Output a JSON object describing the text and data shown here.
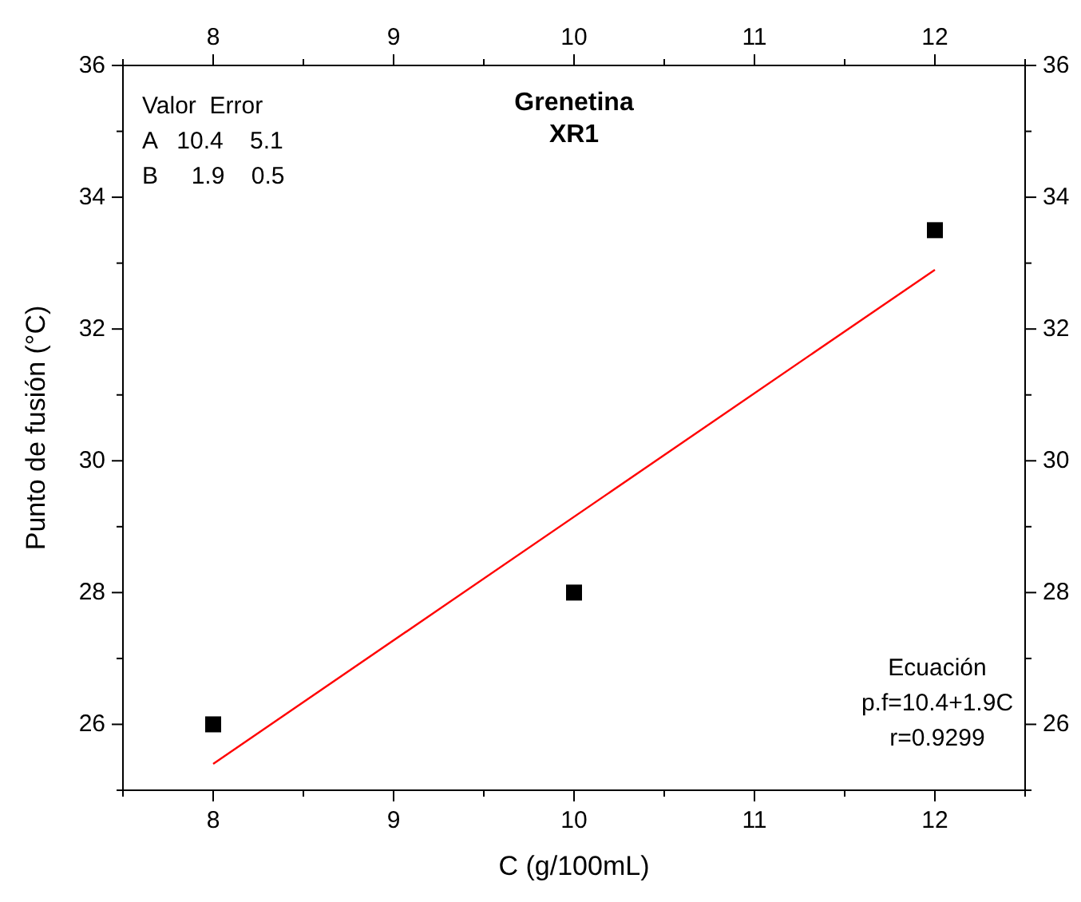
{
  "chart_data": {
    "type": "scatter",
    "title": "Grenetina",
    "subtitle": "XR1",
    "xlabel": "C (g/100mL)",
    "ylabel": "Punto de fusión (°C)",
    "xlim": [
      7.5,
      12.5
    ],
    "xticks": [
      {
        "value": 7.5,
        "label": null
      },
      8,
      {
        "value": 8.5,
        "label": null
      },
      9,
      {
        "value": 9.5,
        "label": null
      },
      10,
      {
        "value": 10.5,
        "label": null
      },
      11,
      {
        "value": 11.5,
        "label": null
      },
      12,
      {
        "value": 12.5,
        "label": null
      }
    ],
    "x2lim": [
      7.5,
      12.5
    ],
    "x2ticks": [
      {
        "value": 7.5,
        "label": null
      },
      8,
      {
        "value": 8.5,
        "label": null
      },
      9,
      {
        "value": 9.5,
        "label": null
      },
      10,
      {
        "value": 10.5,
        "label": null
      },
      11,
      {
        "value": 11.5,
        "label": null
      },
      12,
      {
        "value": 12.5,
        "label": null
      }
    ],
    "ylim": [
      25,
      36
    ],
    "yticks": [
      {
        "value": 25,
        "label": null
      },
      26,
      {
        "value": 27,
        "label": null
      },
      28,
      {
        "value": 29,
        "label": null
      },
      30,
      {
        "value": 31,
        "label": null
      },
      32,
      {
        "value": 33,
        "label": null
      },
      34,
      {
        "value": 35,
        "label": null
      },
      36
    ],
    "y2lim": [
      25,
      36
    ],
    "y2ticks": [
      {
        "value": 25,
        "label": null
      },
      26,
      {
        "value": 27,
        "label": null
      },
      28,
      {
        "value": 29,
        "label": null
      },
      30,
      {
        "value": 31,
        "label": null
      },
      32,
      {
        "value": 33,
        "label": null
      },
      34,
      {
        "value": 35,
        "label": null
      },
      36
    ],
    "series": [
      {
        "color": "#000000",
        "marker": "square",
        "x": [
          8,
          10,
          12
        ],
        "values": [
          26,
          28,
          33.5
        ]
      },
      {
        "type": "line",
        "color": "#ff0000",
        "x": [
          8,
          12
        ],
        "values": [
          25.4,
          32.9
        ]
      }
    ],
    "annotations": [
      "Valor  Error",
      "A   10.4    5.1",
      "B     1.9    0.5",
      "Ecuación",
      "p.f=10.4+1.9C",
      "r=0.9299"
    ]
  }
}
